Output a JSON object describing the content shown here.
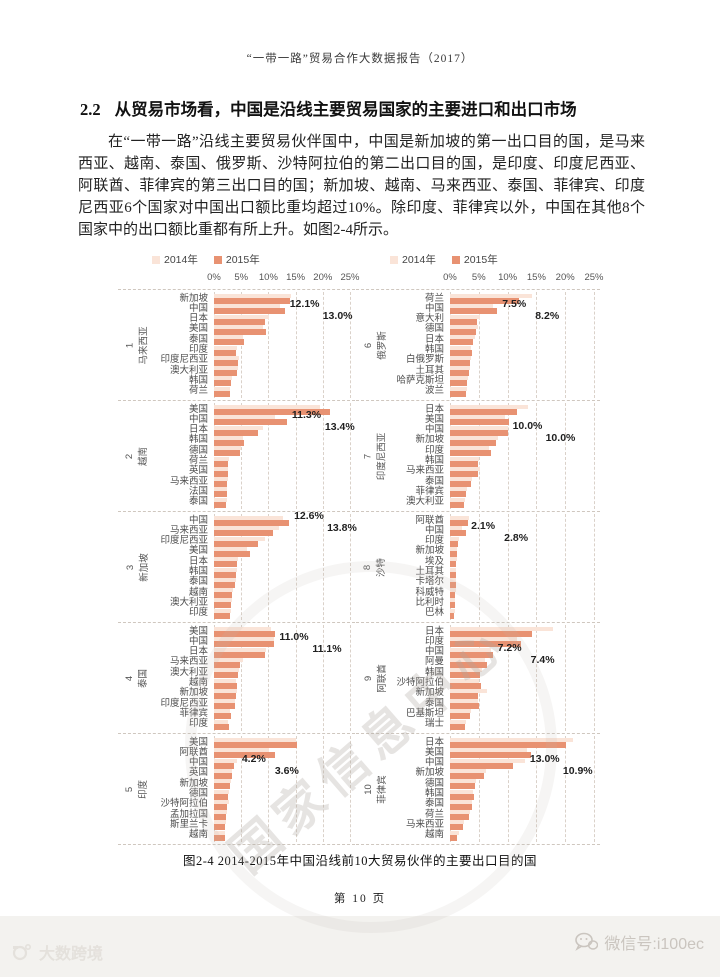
{
  "page": {
    "header_title": "“一带一路”贸易合作大数据报告（2017）",
    "section_number": "2.2",
    "section_title": "从贸易市场看，中国是沿线主要贸易国家的主要进口和出口市场",
    "paragraph": "在“一带一路”沿线主要贸易伙伴国中，中国是新加坡的第一出口目的国，是马来西亚、越南、泰国、俄罗斯、沙特阿拉伯的第二出口目的国，是印度、印度尼西亚、阿联酋、菲律宾的第三出口目的国；新加坡、越南、马来西亚、泰国、菲律宾、印度尼西亚6个国家对中国出口额比重均超过10%。除印度、菲律宾以外，中国在其他8个国家中的出口额比重都有所上升。如图2-4所示。",
    "caption": "图2-4  2014-2015年中国沿线前10大贸易伙伴的主要出口目的国",
    "page_number": "第 10 页",
    "watermark_text": "国家信息中心",
    "bottom_left_logo": "大数跨境",
    "bottom_right_text": "微信号:i100ec"
  },
  "chart_data": {
    "type": "bar",
    "orientation": "horizontal",
    "unit": "percent of partner country exports",
    "xlim": [
      0,
      25
    ],
    "grid": "dashed-vertical-every-5",
    "axis_ticks": [
      "0%",
      "5%",
      "10%",
      "15%",
      "20%",
      "25%"
    ],
    "legend": [
      {
        "name": "2014年",
        "color": "#fae4d8"
      },
      {
        "name": "2015年",
        "color": "#e89272"
      }
    ],
    "groups": [
      {
        "num": "1",
        "name": "马来西亚",
        "column": "left",
        "categories": [
          "新加坡",
          "中国",
          "日本",
          "美国",
          "泰国",
          "印度",
          "印度尼西亚",
          "澳大利亚",
          "韩国",
          "荷兰"
        ],
        "values_2014": [
          14.2,
          12.1,
          10.2,
          9.0,
          5.4,
          4.2,
          4.6,
          4.5,
          3.3,
          3.0
        ],
        "values_2015": [
          14.0,
          13.0,
          9.4,
          9.5,
          5.6,
          4.1,
          4.4,
          4.2,
          3.1,
          2.9
        ],
        "callout": {
          "row": 1,
          "label_2014": "12.1%",
          "label_2015": "13.0%"
        }
      },
      {
        "num": "2",
        "name": "越南",
        "column": "left",
        "categories": [
          "美国",
          "中国",
          "日本",
          "韩国",
          "德国",
          "荷兰",
          "英国",
          "马来西亚",
          "法国",
          "泰国"
        ],
        "values_2014": [
          19.5,
          11.3,
          9.0,
          5.3,
          4.9,
          2.7,
          2.6,
          2.5,
          2.4,
          2.3
        ],
        "values_2015": [
          21.3,
          13.4,
          8.0,
          5.5,
          4.7,
          2.6,
          2.5,
          2.4,
          2.3,
          2.2
        ],
        "callout": {
          "row": 1,
          "label_2014": "11.3%",
          "label_2015": "13.4%"
        }
      },
      {
        "num": "3",
        "name": "新加坡",
        "column": "left",
        "categories": [
          "中国",
          "马来西亚",
          "印度尼西亚",
          "美国",
          "日本",
          "韩国",
          "泰国",
          "越南",
          "澳大利亚",
          "印度"
        ],
        "values_2014": [
          12.6,
          11.9,
          9.3,
          6.1,
          4.4,
          4.2,
          4.0,
          3.5,
          3.4,
          3.1
        ],
        "values_2015": [
          13.8,
          10.8,
          8.1,
          6.6,
          4.2,
          4.1,
          3.9,
          3.3,
          3.2,
          2.9
        ],
        "callout": {
          "row": 0,
          "label_2014": "12.6%",
          "label_2015": "13.8%"
        }
      },
      {
        "num": "4",
        "name": "泰国",
        "column": "left",
        "categories": [
          "美国",
          "中国",
          "日本",
          "马来西亚",
          "澳大利亚",
          "越南",
          "新加坡",
          "印度尼西亚",
          "菲律宾",
          "印度"
        ],
        "values_2014": [
          10.5,
          11.0,
          9.6,
          5.3,
          4.6,
          4.0,
          4.3,
          3.9,
          3.0,
          2.5
        ],
        "values_2015": [
          11.2,
          11.1,
          9.4,
          4.7,
          4.5,
          4.2,
          4.1,
          3.8,
          3.2,
          2.7
        ],
        "callout": {
          "row": 1,
          "label_2014": "11.0%",
          "label_2015": "11.1%"
        }
      },
      {
        "num": "5",
        "name": "印度",
        "column": "left",
        "categories": [
          "美国",
          "阿联酋",
          "中国",
          "英国",
          "新加坡",
          "德国",
          "沙特阿拉伯",
          "孟加拉国",
          "斯里兰卡",
          "越南"
        ],
        "values_2014": [
          15.0,
          10.1,
          4.2,
          3.4,
          3.2,
          2.7,
          2.8,
          2.3,
          2.2,
          2.0
        ],
        "values_2015": [
          15.3,
          11.3,
          3.6,
          3.3,
          3.0,
          2.6,
          2.4,
          2.2,
          2.1,
          2.1
        ],
        "callout": {
          "row": 2,
          "label_2014": "4.2%",
          "label_2015": "3.6%"
        }
      },
      {
        "num": "6",
        "name": "俄罗斯",
        "column": "right",
        "categories": [
          "荷兰",
          "中国",
          "意大利",
          "德国",
          "日本",
          "韩国",
          "白俄罗斯",
          "土耳其",
          "哈萨克斯坦",
          "波兰"
        ],
        "values_2014": [
          14.3,
          7.5,
          5.2,
          4.9,
          4.4,
          3.6,
          3.7,
          3.5,
          3.1,
          3.0
        ],
        "values_2015": [
          11.9,
          8.2,
          4.7,
          4.5,
          4.0,
          3.8,
          3.4,
          3.3,
          2.9,
          2.8
        ],
        "callout": {
          "row": 1,
          "label_2014": "7.5%",
          "label_2015": "8.2%"
        }
      },
      {
        "num": "7",
        "name": "印度尼西亚",
        "column": "right",
        "categories": [
          "日本",
          "美国",
          "中国",
          "新加坡",
          "印度",
          "韩国",
          "马来西亚",
          "泰国",
          "菲律宾",
          "澳大利亚"
        ],
        "values_2014": [
          13.5,
          9.6,
          10.0,
          8.4,
          6.8,
          5.1,
          5.2,
          3.8,
          2.9,
          2.6
        ],
        "values_2015": [
          11.6,
          10.2,
          10.0,
          8.0,
          7.2,
          4.9,
          4.9,
          3.6,
          2.7,
          2.4
        ],
        "callout": {
          "row": 2,
          "label_2014": "10.0%",
          "label_2015": "10.0%"
        }
      },
      {
        "num": "8",
        "name": "沙特",
        "column": "right",
        "categories": [
          "阿联酋",
          "中国",
          "印度",
          "新加坡",
          "埃及",
          "土耳其",
          "卡塔尔",
          "科威特",
          "比利时",
          "巴林"
        ],
        "values_2014": [
          3.3,
          2.1,
          1.5,
          1.3,
          1.2,
          1.1,
          1.0,
          1.0,
          0.9,
          0.8
        ],
        "values_2015": [
          3.1,
          2.8,
          1.4,
          1.2,
          1.1,
          1.0,
          1.0,
          0.9,
          0.8,
          0.7
        ],
        "callout": {
          "row": 1,
          "label_2014": "2.1%",
          "label_2015": "2.8%"
        }
      },
      {
        "num": "9",
        "name": "阿联酋",
        "column": "right",
        "categories": [
          "日本",
          "印度",
          "中国",
          "阿曼",
          "韩国",
          "沙特阿拉伯",
          "新加坡",
          "泰国",
          "巴基斯坦",
          "瑞士"
        ],
        "values_2014": [
          17.9,
          11.6,
          7.2,
          6.0,
          5.5,
          5.0,
          6.5,
          4.8,
          3.7,
          2.8
        ],
        "values_2015": [
          14.3,
          12.4,
          7.4,
          6.4,
          5.2,
          5.3,
          4.9,
          5.1,
          3.5,
          2.6
        ],
        "callout": {
          "row": 2,
          "label_2014": "7.2%",
          "label_2015": "7.4%"
        }
      },
      {
        "num": "10",
        "name": "菲律宾",
        "column": "right",
        "categories": [
          "日本",
          "美国",
          "中国",
          "新加坡",
          "德国",
          "韩国",
          "泰国",
          "荷兰",
          "马来西亚",
          "越南"
        ],
        "values_2014": [
          21.4,
          13.4,
          13.0,
          6.2,
          4.5,
          4.0,
          3.9,
          3.5,
          2.4,
          1.5
        ],
        "values_2015": [
          20.1,
          14.0,
          10.9,
          5.9,
          4.3,
          4.2,
          3.8,
          3.3,
          2.2,
          1.3
        ],
        "callout": {
          "row": 2,
          "label_2014": "13.0%",
          "label_2015": "10.9%"
        }
      }
    ]
  }
}
